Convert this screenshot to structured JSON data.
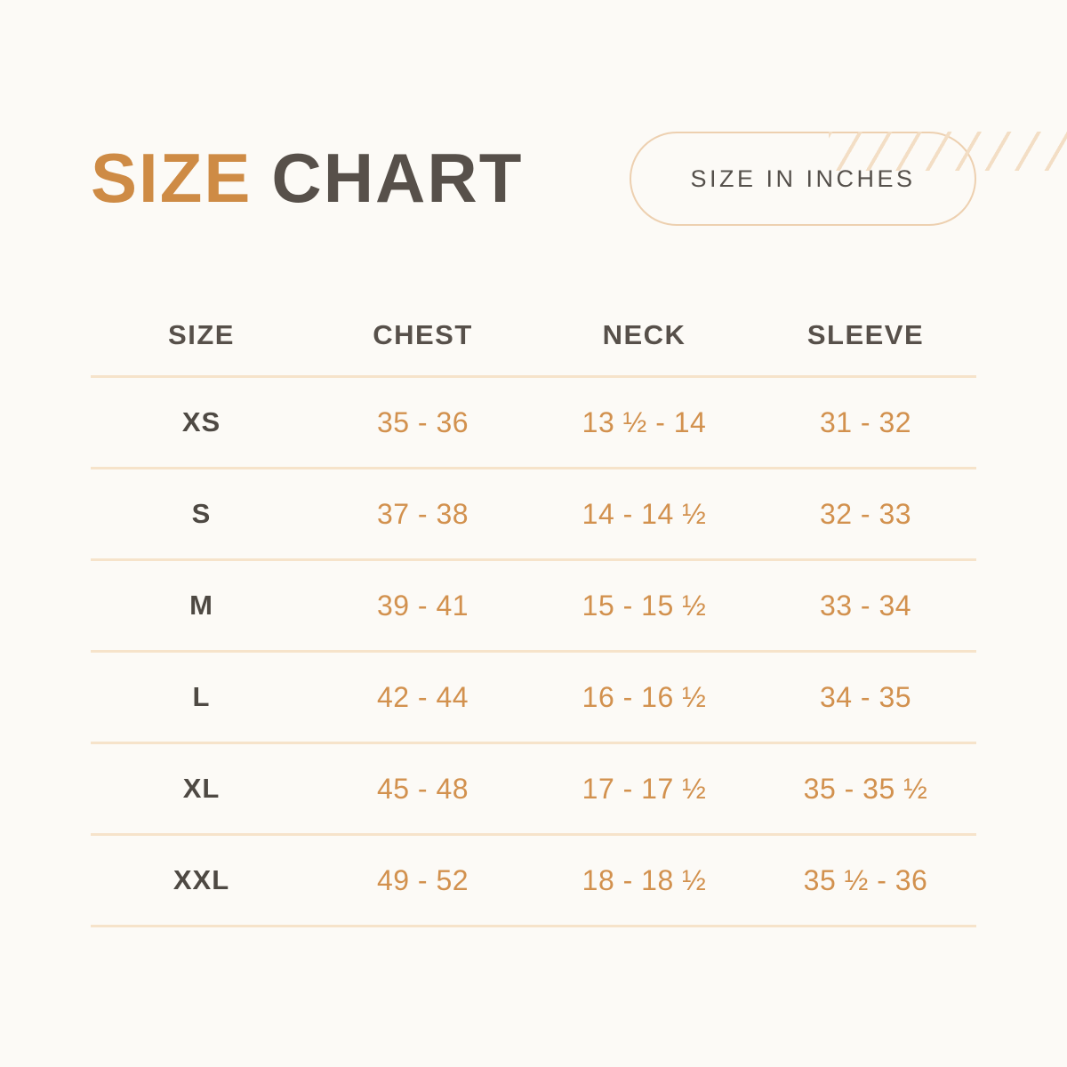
{
  "colors": {
    "background": "#FCFAF6",
    "accent_orange": "#CE8B45",
    "value_orange": "#D2914E",
    "dark_text": "#57504A",
    "divider": "#F6E3CA",
    "pill_border": "#EDD0B0",
    "stripe": "#F3DEC5"
  },
  "header": {
    "title_accent": "SIZE",
    "title_rest": "CHART",
    "badge_label": "SIZE IN INCHES"
  },
  "chart_data": {
    "type": "table",
    "title": "SIZE CHART",
    "unit": "inches",
    "columns": [
      "SIZE",
      "CHEST",
      "NECK",
      "SLEEVE"
    ],
    "rows": [
      {
        "size": "XS",
        "chest": "35 - 36",
        "neck": "13 ½ - 14",
        "sleeve": "31 - 32"
      },
      {
        "size": "S",
        "chest": "37 - 38",
        "neck": "14 - 14 ½",
        "sleeve": "32 - 33"
      },
      {
        "size": "M",
        "chest": "39 - 41",
        "neck": "15 - 15 ½",
        "sleeve": "33 - 34"
      },
      {
        "size": "L",
        "chest": "42 - 44",
        "neck": "16 - 16 ½",
        "sleeve": "34 - 35"
      },
      {
        "size": "XL",
        "chest": "45 - 48",
        "neck": "17 - 17 ½",
        "sleeve": "35 - 35 ½"
      },
      {
        "size": "XXL",
        "chest": "49 - 52",
        "neck": "18 - 18 ½",
        "sleeve": "35 ½ - 36"
      }
    ]
  }
}
